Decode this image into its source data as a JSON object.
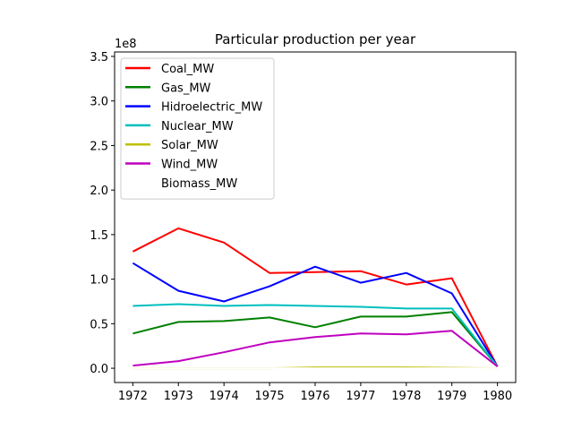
{
  "chart_data": {
    "type": "line",
    "title": "Particular production per year",
    "xlabel": "",
    "ylabel": "",
    "y_offset_label": "1e8",
    "x": [
      1972,
      1973,
      1974,
      1975,
      1976,
      1977,
      1978,
      1979,
      1980
    ],
    "xticks": [
      "1972",
      "1973",
      "1974",
      "1975",
      "1976",
      "1977",
      "1978",
      "1979",
      "1980"
    ],
    "xlim": [
      1971.6,
      1980.4
    ],
    "ylim": [
      -0.16,
      3.55
    ],
    "yticks": [
      0.0,
      0.5,
      1.0,
      1.5,
      2.0,
      2.5,
      3.0,
      3.5
    ],
    "ytick_labels": [
      "0.0",
      "0.5",
      "1.0",
      "1.5",
      "2.0",
      "2.5",
      "3.0",
      "3.5"
    ],
    "y_unit_multiplier": 100000000,
    "grid": false,
    "legend_position": "upper-left",
    "series": [
      {
        "name": "Coal_MW",
        "color": "#ff0000",
        "values": [
          1.31,
          1.57,
          1.41,
          1.07,
          1.08,
          1.09,
          0.94,
          1.01,
          0.02
        ]
      },
      {
        "name": "Gas_MW",
        "color": "#008000",
        "values": [
          0.39,
          0.52,
          0.53,
          0.57,
          0.46,
          0.58,
          0.58,
          0.63,
          0.02
        ]
      },
      {
        "name": "Hidroelectric_MW",
        "color": "#0000ff",
        "values": [
          1.18,
          0.87,
          0.75,
          0.92,
          1.14,
          0.96,
          1.07,
          0.84,
          0.02
        ]
      },
      {
        "name": "Nuclear_MW",
        "color": "#00bfbf",
        "values": [
          0.7,
          0.72,
          0.7,
          0.71,
          0.7,
          0.69,
          0.67,
          0.67,
          0.02
        ]
      },
      {
        "name": "Solar_MW",
        "color": "#bfbf00",
        "values": [
          0.0,
          0.0,
          0.0,
          0.0,
          0.01,
          0.01,
          0.01,
          0.005,
          0.0
        ]
      },
      {
        "name": "Wind_MW",
        "color": "#bf00bf",
        "values": [
          0.03,
          0.08,
          0.18,
          0.29,
          0.35,
          0.39,
          0.38,
          0.42,
          0.02
        ]
      },
      {
        "name": "Biomass_MW",
        "color": "#ffffff",
        "values": [
          0.0,
          0.0,
          0.0,
          0.0,
          0.0,
          0.0,
          0.0,
          0.0,
          0.0
        ]
      }
    ]
  }
}
